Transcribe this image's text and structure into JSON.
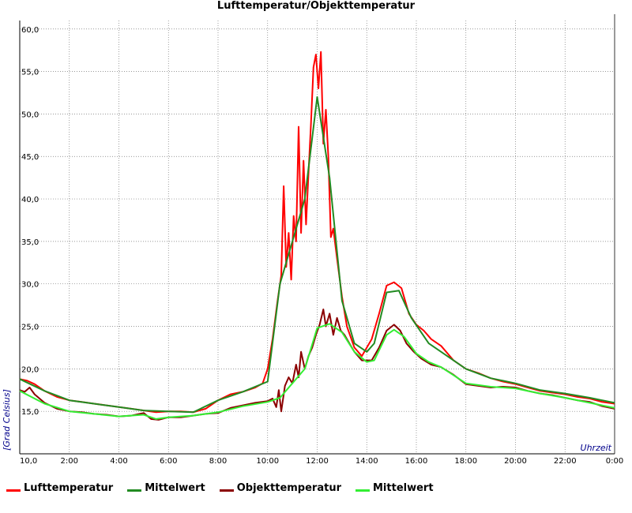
{
  "chart_data": {
    "type": "line",
    "title": "Lufttemperatur/Objekttemperatur",
    "xlabel": "Uhrzeit",
    "ylabel": "[Grad Celsius]",
    "ylim": [
      10.0,
      60.0
    ],
    "xlim": [
      0,
      24
    ],
    "x_tick_labels": [
      "10,0",
      "2:00",
      "4:00",
      "6:00",
      "8:00",
      "10:00",
      "12:00",
      "14:00",
      "16:00",
      "18:00",
      "20:00",
      "22:00",
      "0:00"
    ],
    "y_tick_labels": [
      "15,0",
      "20,0",
      "25,0",
      "30,0",
      "35,0",
      "40,0",
      "45,0",
      "50,0",
      "55,0",
      "60,0"
    ],
    "y_ticks": [
      15,
      20,
      25,
      30,
      35,
      40,
      45,
      50,
      55,
      60
    ],
    "grid": true,
    "legend_position": "bottom",
    "series": [
      {
        "name": "Lufttemperatur",
        "color": "#ff0000",
        "points": [
          [
            0,
            18.8
          ],
          [
            0.3,
            18.6
          ],
          [
            0.6,
            18.2
          ],
          [
            1,
            17.4
          ],
          [
            1.5,
            16.7
          ],
          [
            2,
            16.3
          ],
          [
            2.5,
            16.1
          ],
          [
            3,
            15.9
          ],
          [
            3.5,
            15.7
          ],
          [
            4,
            15.5
          ],
          [
            4.5,
            15.3
          ],
          [
            5,
            15.1
          ],
          [
            5.5,
            14.9
          ],
          [
            6,
            15.0
          ],
          [
            6.5,
            15.0
          ],
          [
            7,
            14.9
          ],
          [
            7.5,
            15.3
          ],
          [
            8,
            16.3
          ],
          [
            8.5,
            17.0
          ],
          [
            9,
            17.3
          ],
          [
            9.5,
            17.8
          ],
          [
            9.8,
            18.3
          ],
          [
            10,
            20.0
          ],
          [
            10.2,
            23.5
          ],
          [
            10.4,
            28.0
          ],
          [
            10.55,
            31.0
          ],
          [
            10.65,
            41.5
          ],
          [
            10.75,
            32.0
          ],
          [
            10.85,
            36.0
          ],
          [
            10.95,
            30.5
          ],
          [
            11.05,
            38.0
          ],
          [
            11.15,
            35.0
          ],
          [
            11.25,
            48.5
          ],
          [
            11.35,
            36.0
          ],
          [
            11.45,
            44.5
          ],
          [
            11.55,
            37.0
          ],
          [
            11.65,
            43.0
          ],
          [
            11.75,
            49.0
          ],
          [
            11.85,
            55.5
          ],
          [
            11.95,
            57.0
          ],
          [
            12.05,
            53.0
          ],
          [
            12.15,
            57.3
          ],
          [
            12.25,
            46.5
          ],
          [
            12.35,
            50.5
          ],
          [
            12.45,
            45.0
          ],
          [
            12.55,
            35.5
          ],
          [
            12.65,
            36.5
          ],
          [
            12.8,
            33.0
          ],
          [
            13,
            28.5
          ],
          [
            13.2,
            25.0
          ],
          [
            13.5,
            22.5
          ],
          [
            13.8,
            21.5
          ],
          [
            14.2,
            23.5
          ],
          [
            14.5,
            26.5
          ],
          [
            14.8,
            29.8
          ],
          [
            15.1,
            30.2
          ],
          [
            15.4,
            29.5
          ],
          [
            15.7,
            26.5
          ],
          [
            16,
            25.2
          ],
          [
            16.3,
            24.5
          ],
          [
            16.6,
            23.5
          ],
          [
            17,
            22.7
          ],
          [
            17.5,
            21.0
          ],
          [
            18,
            20.0
          ],
          [
            18.5,
            19.5
          ],
          [
            19,
            18.9
          ],
          [
            19.5,
            18.5
          ],
          [
            20,
            18.2
          ],
          [
            20.5,
            17.8
          ],
          [
            21,
            17.4
          ],
          [
            21.5,
            17.2
          ],
          [
            22,
            17.0
          ],
          [
            22.5,
            16.7
          ],
          [
            23,
            16.5
          ],
          [
            23.5,
            16.1
          ],
          [
            24,
            15.9
          ]
        ]
      },
      {
        "name": "Mittelwert",
        "color": "#228b22",
        "points": [
          [
            0,
            18.8
          ],
          [
            1,
            17.4
          ],
          [
            2,
            16.3
          ],
          [
            3,
            15.9
          ],
          [
            4,
            15.5
          ],
          [
            5,
            15.1
          ],
          [
            6,
            15.0
          ],
          [
            7,
            14.9
          ],
          [
            8,
            16.3
          ],
          [
            9,
            17.3
          ],
          [
            10,
            18.5
          ],
          [
            10.5,
            30.0
          ],
          [
            11,
            35.0
          ],
          [
            11.5,
            40.0
          ],
          [
            12,
            52.0
          ],
          [
            12.5,
            42.5
          ],
          [
            13,
            28.0
          ],
          [
            13.5,
            23.0
          ],
          [
            14,
            22.0
          ],
          [
            14.3,
            23.0
          ],
          [
            14.8,
            29.0
          ],
          [
            15.3,
            29.2
          ],
          [
            15.8,
            26.0
          ],
          [
            16.5,
            23.0
          ],
          [
            17,
            22.0
          ],
          [
            18,
            20.0
          ],
          [
            19,
            18.9
          ],
          [
            20,
            18.3
          ],
          [
            21,
            17.5
          ],
          [
            22,
            17.1
          ],
          [
            23,
            16.6
          ],
          [
            24,
            16.0
          ]
        ]
      },
      {
        "name": "Objekttemperatur",
        "color": "#8b0000",
        "points": [
          [
            0,
            17.5
          ],
          [
            0.2,
            17.3
          ],
          [
            0.4,
            17.8
          ],
          [
            0.6,
            17.0
          ],
          [
            1,
            16.0
          ],
          [
            1.5,
            15.3
          ],
          [
            2,
            15.0
          ],
          [
            2.5,
            14.9
          ],
          [
            3,
            14.7
          ],
          [
            3.5,
            14.6
          ],
          [
            4,
            14.4
          ],
          [
            4.5,
            14.5
          ],
          [
            5,
            14.8
          ],
          [
            5.3,
            14.1
          ],
          [
            5.6,
            14.0
          ],
          [
            6,
            14.3
          ],
          [
            6.5,
            14.3
          ],
          [
            7,
            14.5
          ],
          [
            7.5,
            14.7
          ],
          [
            8,
            14.8
          ],
          [
            8.5,
            15.4
          ],
          [
            9,
            15.7
          ],
          [
            9.5,
            16.0
          ],
          [
            10,
            16.2
          ],
          [
            10.2,
            16.5
          ],
          [
            10.35,
            15.5
          ],
          [
            10.45,
            17.5
          ],
          [
            10.55,
            15.0
          ],
          [
            10.7,
            18.0
          ],
          [
            10.85,
            19.0
          ],
          [
            11,
            18.3
          ],
          [
            11.15,
            20.5
          ],
          [
            11.25,
            19.0
          ],
          [
            11.35,
            22.0
          ],
          [
            11.5,
            20.0
          ],
          [
            11.65,
            21.5
          ],
          [
            11.8,
            22.5
          ],
          [
            11.95,
            24.0
          ],
          [
            12.1,
            25.2
          ],
          [
            12.25,
            27.0
          ],
          [
            12.35,
            25.0
          ],
          [
            12.5,
            26.5
          ],
          [
            12.65,
            24.0
          ],
          [
            12.8,
            26.0
          ],
          [
            12.95,
            24.5
          ],
          [
            13.1,
            24.0
          ],
          [
            13.3,
            23.0
          ],
          [
            13.5,
            22.0
          ],
          [
            13.8,
            21.0
          ],
          [
            14.2,
            21.0
          ],
          [
            14.5,
            22.5
          ],
          [
            14.8,
            24.5
          ],
          [
            15.1,
            25.2
          ],
          [
            15.35,
            24.5
          ],
          [
            15.6,
            23.0
          ],
          [
            15.9,
            22.0
          ],
          [
            16.2,
            21.2
          ],
          [
            16.6,
            20.5
          ],
          [
            17,
            20.2
          ],
          [
            17.5,
            19.3
          ],
          [
            18,
            18.2
          ],
          [
            18.5,
            18.0
          ],
          [
            19,
            17.8
          ],
          [
            19.5,
            17.9
          ],
          [
            20,
            17.8
          ],
          [
            20.5,
            17.4
          ],
          [
            21,
            17.1
          ],
          [
            21.5,
            16.9
          ],
          [
            22,
            16.6
          ],
          [
            22.5,
            16.3
          ],
          [
            23,
            16.1
          ],
          [
            23.5,
            15.6
          ],
          [
            24,
            15.3
          ]
        ]
      },
      {
        "name": "Mittelwert",
        "color": "#33ee33",
        "points": [
          [
            0,
            17.4
          ],
          [
            1,
            15.9
          ],
          [
            2,
            15.0
          ],
          [
            3,
            14.7
          ],
          [
            4,
            14.4
          ],
          [
            5,
            14.6
          ],
          [
            5.5,
            14.1
          ],
          [
            6,
            14.3
          ],
          [
            7,
            14.5
          ],
          [
            8,
            14.9
          ],
          [
            9,
            15.6
          ],
          [
            10,
            16.1
          ],
          [
            10.5,
            16.6
          ],
          [
            11,
            18.3
          ],
          [
            11.5,
            20.0
          ],
          [
            12,
            24.8
          ],
          [
            12.5,
            25.3
          ],
          [
            13,
            24.3
          ],
          [
            13.5,
            22.0
          ],
          [
            14,
            20.8
          ],
          [
            14.3,
            21.0
          ],
          [
            14.8,
            24.0
          ],
          [
            15.1,
            24.6
          ],
          [
            15.5,
            23.8
          ],
          [
            16,
            21.8
          ],
          [
            16.5,
            20.8
          ],
          [
            17,
            20.2
          ],
          [
            18,
            18.3
          ],
          [
            19,
            17.9
          ],
          [
            20,
            17.7
          ],
          [
            21,
            17.1
          ],
          [
            22,
            16.6
          ],
          [
            23,
            16.0
          ],
          [
            24,
            15.4
          ]
        ]
      }
    ]
  }
}
